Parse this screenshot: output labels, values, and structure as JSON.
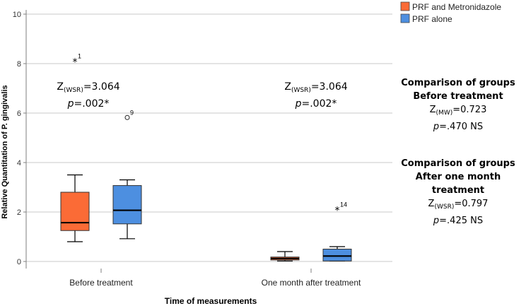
{
  "chart_data": {
    "type": "boxplot",
    "xlabel": "Time of measurements",
    "ylabel": "Relative Quantitation of P. gingivalis",
    "ylim": [
      0,
      10
    ],
    "yticks": [
      0,
      2,
      4,
      6,
      8,
      10
    ],
    "gridlines": true,
    "legend_position": "top-right",
    "categories": [
      "Before treatment",
      "One month after treatment"
    ],
    "series": [
      {
        "name": "PRF and Metronidazole",
        "color": "#fb6b36",
        "boxes": [
          {
            "min": 0.8,
            "q1": 1.25,
            "median": 1.57,
            "q3": 2.8,
            "max": 3.5
          },
          {
            "min": 0.02,
            "q1": 0.06,
            "median": 0.12,
            "q3": 0.18,
            "max": 0.4
          }
        ]
      },
      {
        "name": "PRF alone",
        "color": "#4d8fe0",
        "boxes": [
          {
            "min": 0.92,
            "q1": 1.52,
            "median": 2.07,
            "q3": 3.07,
            "max": 3.3
          },
          {
            "min": 0.02,
            "q1": 0.02,
            "median": 0.22,
            "q3": 0.5,
            "max": 0.6
          }
        ]
      }
    ],
    "outliers": [
      {
        "series": 0,
        "category": 0,
        "value": 8.1,
        "marker": "*",
        "label": "1"
      },
      {
        "series": 1,
        "category": 0,
        "value": 5.82,
        "marker": "o",
        "label": "9"
      },
      {
        "series": 1,
        "category": 1,
        "value": 2.1,
        "marker": "*",
        "label": "14"
      }
    ]
  },
  "annotations": {
    "before": {
      "z_label": "Z",
      "z_sub": "(WSR)",
      "z_value": "=3.064",
      "p_label": "p",
      "p_value": "=.002*"
    },
    "after": {
      "z_label": "Z",
      "z_sub": "(WSR)",
      "z_value": "=3.064",
      "p_label": "p",
      "p_value": "=.002*"
    },
    "group_before": {
      "title_1": "Comparison of groups",
      "title_2": "Before treatment",
      "z_label": "Z",
      "z_sub": "(MW)",
      "z_value": "=0.723",
      "p_label": "p",
      "p_value": "=.470 NS"
    },
    "group_after": {
      "title_1": "Comparison of groups",
      "title_2": "After one month treatment",
      "z_label": "Z",
      "z_sub": "(WSR)",
      "z_value": "=0.797",
      "p_label": "p",
      "p_value": "=.425 NS"
    }
  }
}
